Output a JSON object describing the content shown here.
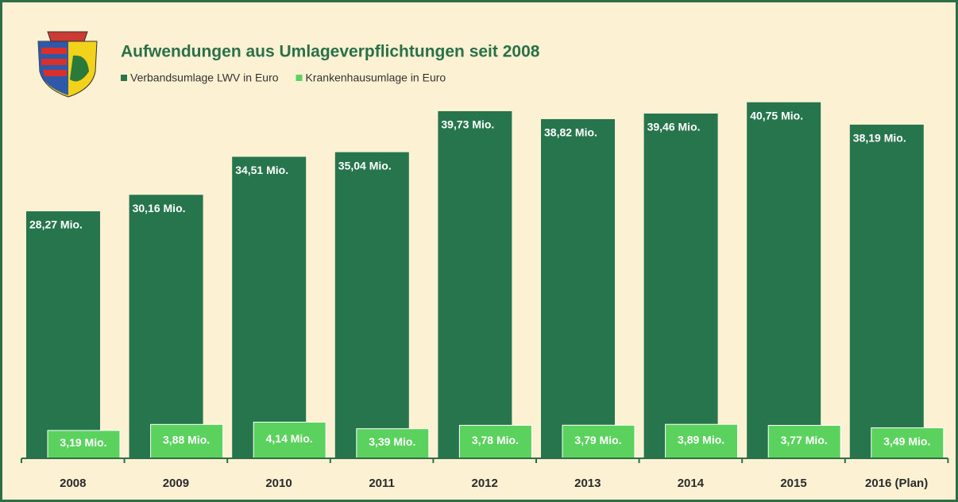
{
  "chart_data": {
    "type": "bar",
    "title": "Aufwendungen aus Umlageverpflichtungen seit 2008",
    "categories": [
      "2008",
      "2009",
      "2010",
      "2011",
      "2012",
      "2013",
      "2014",
      "2015",
      "2016 (Plan)"
    ],
    "legend": "top-left",
    "series": [
      {
        "name": "Verbandsumlage LWV in Euro",
        "color": "#27754d",
        "values": [
          28.27,
          30.16,
          34.51,
          35.04,
          39.73,
          38.82,
          39.46,
          40.75,
          38.19
        ],
        "value_labels": [
          "28,27 Mio.",
          "30,16 Mio.",
          "34,51 Mio.",
          "35,04 Mio.",
          "39,73 Mio.",
          "38,82 Mio.",
          "39,46 Mio.",
          "40,75 Mio.",
          "38,19 Mio."
        ]
      },
      {
        "name": "Krankenhausumlage in Euro",
        "color": "#5bd25d",
        "values": [
          3.19,
          3.88,
          4.14,
          3.39,
          3.78,
          3.79,
          3.89,
          3.77,
          3.49
        ],
        "value_labels": [
          "3,19 Mio.",
          "3,88 Mio.",
          "4,14 Mio.",
          "3,39 Mio.",
          "3,78 Mio.",
          "3,79 Mio.",
          "3,89 Mio.",
          "3,77 Mio.",
          "3,49 Mio."
        ]
      }
    ]
  }
}
